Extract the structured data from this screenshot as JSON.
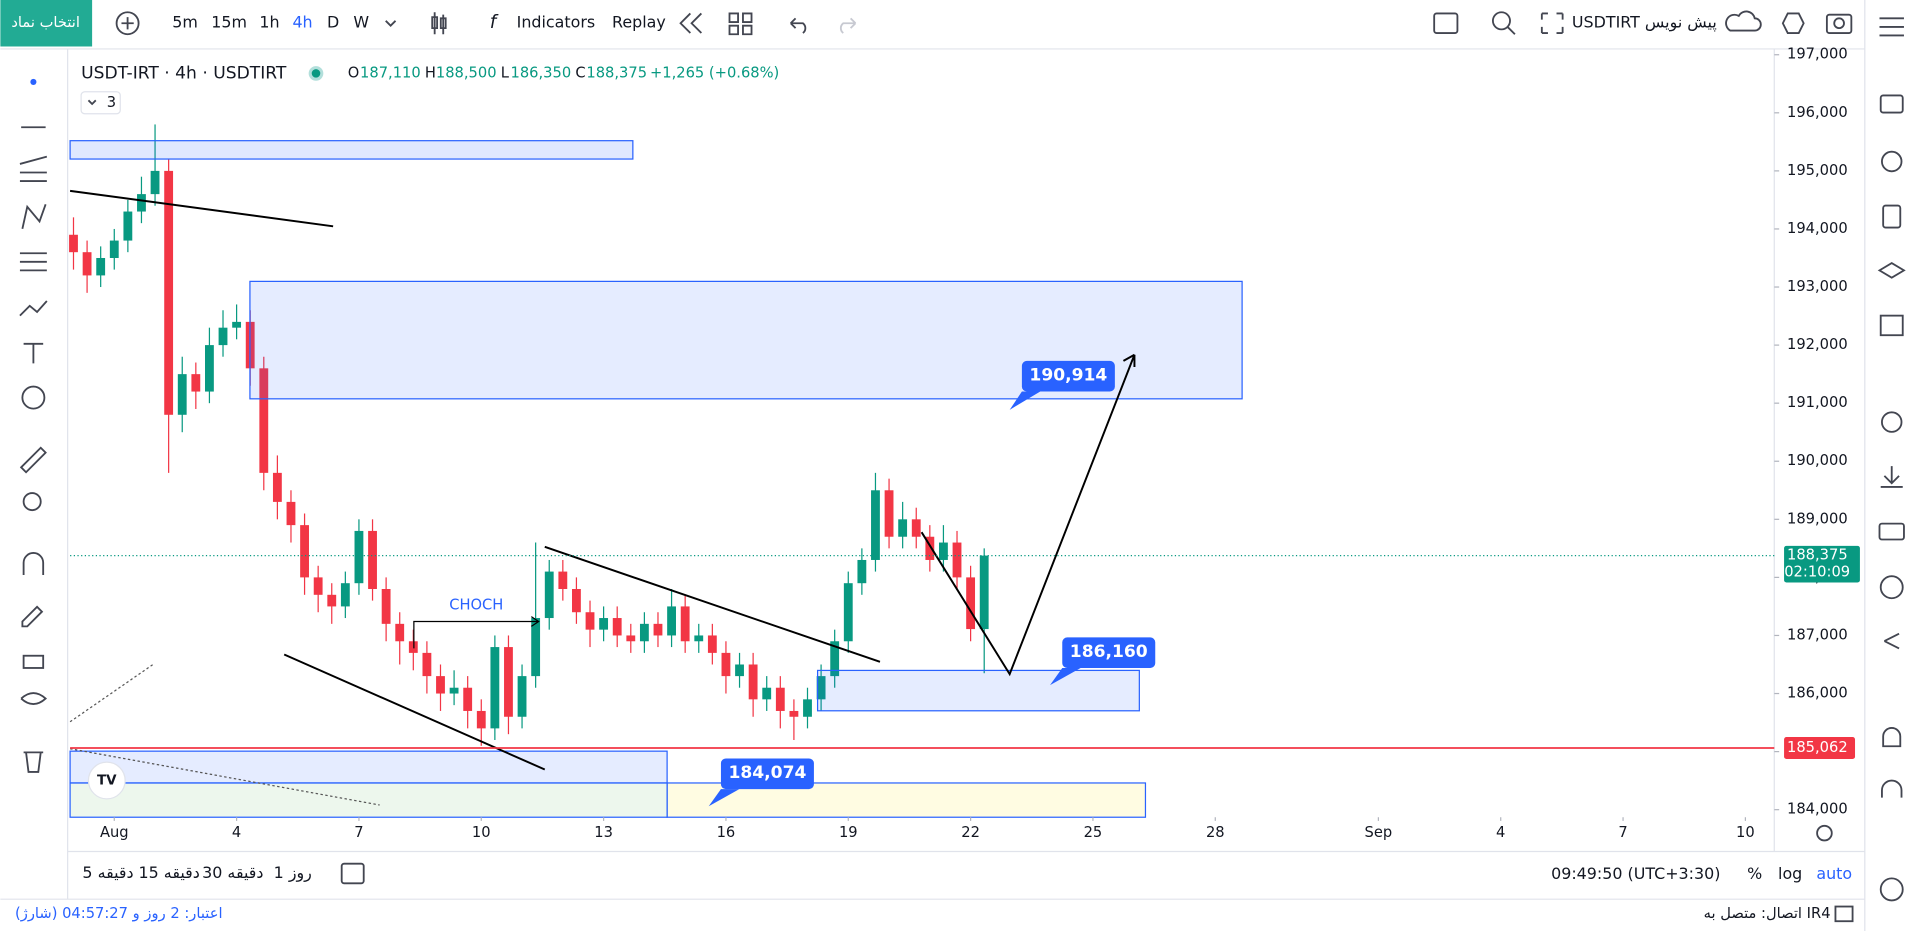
{
  "top_bar": {
    "symbol_search": "انتخاب نماد",
    "intervals": [
      "5m",
      "15m",
      "1h",
      "4h",
      "D",
      "W"
    ],
    "indicators": "Indicators",
    "replay": "Replay",
    "layout_name": "USDTIRT پیش نویس"
  },
  "chart_data": {
    "type": "candlestick",
    "title": "USDT-IRT · 4h · USDTIRT",
    "legend_values": [
      "O",
      "187,110",
      "H",
      "188,500",
      "L",
      "186,350",
      "C",
      "188,375",
      "+1,265 (+0.68%)"
    ],
    "collapsed_count": "3",
    "x": [
      -24,
      -16,
      -8,
      0,
      8,
      16,
      24,
      32,
      40,
      48,
      56,
      64,
      72,
      80,
      88,
      96,
      104,
      112,
      120,
      128,
      136,
      144,
      152,
      160,
      168,
      176,
      184,
      192,
      200,
      208,
      216,
      224,
      232,
      240,
      248,
      256,
      264,
      272,
      280,
      288,
      296,
      304,
      312,
      320,
      328,
      336,
      344,
      352,
      360,
      368,
      376,
      384,
      392,
      400,
      408,
      416,
      424,
      432,
      440,
      448,
      456,
      464,
      472,
      480,
      488,
      496,
      504,
      512
    ],
    "ohlc": [
      [
        193900,
        194200,
        193300,
        193600
      ],
      [
        193600,
        193800,
        192900,
        193200
      ],
      [
        193200,
        193700,
        193000,
        193500
      ],
      [
        193500,
        194000,
        193300,
        193800
      ],
      [
        193800,
        194500,
        193600,
        194300
      ],
      [
        194300,
        194900,
        194100,
        194600
      ],
      [
        194600,
        195800,
        194400,
        195000
      ],
      [
        195000,
        195200,
        189800,
        190800
      ],
      [
        190800,
        191800,
        190500,
        191500
      ],
      [
        191500,
        191700,
        190900,
        191200
      ],
      [
        191200,
        192300,
        191000,
        192000
      ],
      [
        192000,
        192600,
        191800,
        192300
      ],
      [
        192300,
        192700,
        192100,
        192400
      ],
      [
        192400,
        192600,
        191300,
        191600
      ],
      [
        191600,
        191800,
        189500,
        189800
      ],
      [
        189800,
        190100,
        189000,
        189300
      ],
      [
        189300,
        189500,
        188600,
        188900
      ],
      [
        188900,
        189100,
        187700,
        188000
      ],
      [
        188000,
        188200,
        187400,
        187700
      ],
      [
        187700,
        187900,
        187200,
        187500
      ],
      [
        187500,
        188100,
        187300,
        187900
      ],
      [
        187900,
        189000,
        187700,
        188800
      ],
      [
        188800,
        189000,
        187600,
        187800
      ],
      [
        187800,
        188000,
        186900,
        187200
      ],
      [
        187200,
        187400,
        186500,
        186900
      ],
      [
        186900,
        187100,
        186400,
        186700
      ],
      [
        186700,
        186900,
        186000,
        186300
      ],
      [
        186300,
        186500,
        185700,
        186000
      ],
      [
        186000,
        186400,
        185800,
        186100
      ],
      [
        186100,
        186300,
        185400,
        185700
      ],
      [
        185700,
        185900,
        185100,
        185400
      ],
      [
        185400,
        187000,
        185200,
        186800
      ],
      [
        186800,
        187000,
        185300,
        185600
      ],
      [
        185600,
        186500,
        185400,
        186300
      ],
      [
        186300,
        188600,
        186100,
        187300
      ],
      [
        187300,
        188300,
        187100,
        188100
      ],
      [
        188100,
        188300,
        187600,
        187800
      ],
      [
        187800,
        188000,
        187200,
        187400
      ],
      [
        187400,
        187600,
        186800,
        187100
      ],
      [
        187100,
        187500,
        186900,
        187300
      ],
      [
        187300,
        187500,
        186800,
        187000
      ],
      [
        187000,
        187200,
        186700,
        186900
      ],
      [
        186900,
        187400,
        186700,
        187200
      ],
      [
        187200,
        187400,
        186800,
        187000
      ],
      [
        187000,
        187800,
        186800,
        187500
      ],
      [
        187500,
        187700,
        186700,
        186900
      ],
      [
        186900,
        187200,
        186700,
        187000
      ],
      [
        187000,
        187200,
        186500,
        186700
      ],
      [
        186700,
        186900,
        186000,
        186300
      ],
      [
        186300,
        186700,
        186100,
        186500
      ],
      [
        186500,
        186700,
        185600,
        185900
      ],
      [
        185900,
        186300,
        185700,
        186100
      ],
      [
        186100,
        186300,
        185400,
        185700
      ],
      [
        185700,
        185900,
        185200,
        185600
      ],
      [
        185600,
        186100,
        185400,
        185900
      ],
      [
        185900,
        186500,
        185700,
        186300
      ],
      [
        186300,
        187100,
        186100,
        186900
      ],
      [
        186900,
        188100,
        186700,
        187900
      ],
      [
        187900,
        188500,
        187700,
        188300
      ],
      [
        188300,
        189800,
        188100,
        189500
      ],
      [
        189500,
        189700,
        188500,
        188700
      ],
      [
        188700,
        189300,
        188500,
        189000
      ],
      [
        189000,
        189200,
        188500,
        188700
      ],
      [
        188700,
        188900,
        188100,
        188300
      ],
      [
        188300,
        188900,
        188100,
        188600
      ],
      [
        188600,
        188800,
        187800,
        188000
      ],
      [
        188000,
        188200,
        186900,
        187110
      ],
      [
        187110,
        188500,
        186350,
        188375
      ]
    ],
    "up_color": "#089981",
    "down_color": "#f23645",
    "xlim": [
      -26,
      977
    ],
    "xticks": [
      {
        "value": 0,
        "label": "Aug"
      },
      72,
      144,
      216,
      288,
      360,
      432,
      504,
      576,
      648,
      {
        "value": 744,
        "label": "Sep"
      },
      816,
      888,
      960
    ],
    "xtick_labels": [
      "Aug",
      "4",
      "7",
      "10",
      "13",
      "16",
      "19",
      "22",
      "25",
      "28",
      "Sep",
      "4",
      "7",
      "10"
    ],
    "ylim": [
      183870,
      197100
    ],
    "yticks": [
      {
        "value": 184000,
        "label": "184,000"
      },
      {
        "value": 185000,
        "label": "185,000"
      },
      {
        "value": 186000,
        "label": "186,000"
      },
      {
        "value": 187000,
        "label": "187,000"
      },
      {
        "value": 188000,
        "label": "188,000"
      },
      {
        "value": 189000,
        "label": "189,000"
      },
      {
        "value": 190000,
        "label": "190,000"
      },
      {
        "value": 191000,
        "label": "191,000"
      },
      {
        "value": 192000,
        "label": "192,000"
      },
      {
        "value": 193000,
        "label": "193,000"
      },
      {
        "value": 194000,
        "label": "194,000"
      },
      {
        "value": 195000,
        "label": "195,000"
      },
      {
        "value": 196000,
        "label": "196,000"
      },
      {
        "value": 197000,
        "label": "197,000"
      }
    ],
    "grid": false,
    "price_line": {
      "value": 188375,
      "label": "188,375",
      "countdown": "02:10:09",
      "color": "#089981"
    },
    "horizontal_line": {
      "value": 185062,
      "label": "185,062",
      "color": "#f23645"
    },
    "annotations": [
      "CHOCH",
      "190,914",
      "186,160",
      "184,074"
    ]
  },
  "bottom_bar": {
    "ranges": [
      "5 دقیقه",
      "15 دقیقه",
      "30 دقیقه",
      "1 روز"
    ],
    "clock": "09:49:50 (UTC+3:30)",
    "scale_options": [
      "%",
      "log",
      "auto"
    ]
  },
  "status_bar": {
    "credit": "اعتبار: 2 روز و 04:57:27 (شارژ)",
    "connection": "اتصال: متصل به IR4"
  }
}
